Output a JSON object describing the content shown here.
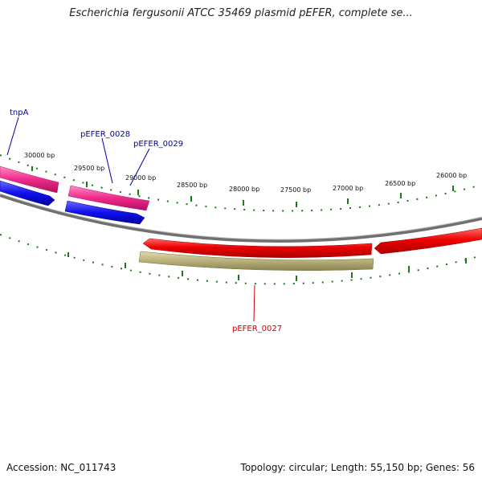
{
  "title": "Escherichia fergusonii ATCC 35469 plasmid pEFER, complete se...",
  "footer": {
    "accession": "Accession: NC_011743",
    "summary": "Topology: circular; Length: 55,150 bp; Genes: 56"
  },
  "colors": {
    "tick": "#1a7a1a",
    "backbone": "#808080",
    "gene_red": "#ee0000",
    "gene_khaki": "#b8b07a",
    "gene_pink": "#ee2a88",
    "gene_blue": "#1010ee",
    "label_blue": "#0000aa",
    "label_red": "#cc0000"
  },
  "ruler_labels": [
    "30000 bp",
    "29500 bp",
    "29000 bp",
    "28500 bp",
    "28000 bp",
    "27500 bp",
    "27000 bp",
    "26500 bp",
    "26000 bp"
  ],
  "gene_labels": [
    {
      "name": "tnpA",
      "color": "label_blue"
    },
    {
      "name": "pEFER_0028",
      "color": "label_blue"
    },
    {
      "name": "pEFER_0029",
      "color": "label_blue"
    },
    {
      "name": "pEFER_0027",
      "color": "label_red"
    }
  ]
}
